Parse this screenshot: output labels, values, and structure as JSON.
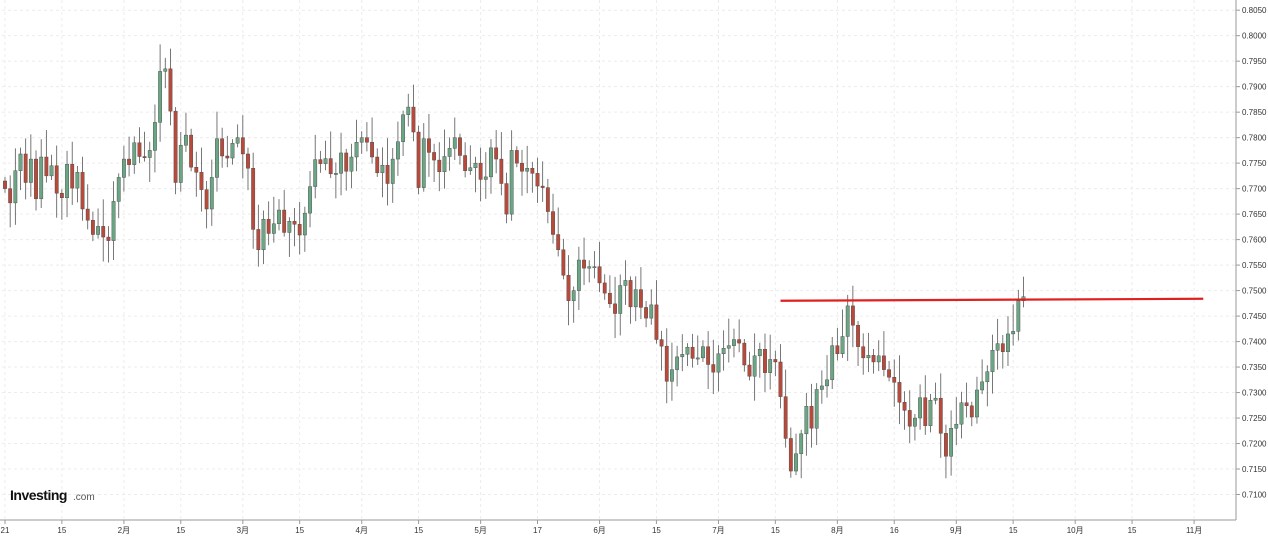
{
  "logo": {
    "main": "Investing",
    "suffix": ".com"
  },
  "colors": {
    "up": "#6aa584",
    "down": "#b84a3c",
    "trendline": "#e02020",
    "grid": "#ececec",
    "axis": "#9a9a9a"
  },
  "chart_data": {
    "type": "candlestick",
    "title": "",
    "xlabel": "",
    "ylabel": "",
    "ylim": [
      0.705,
      0.807
    ],
    "y_ticks": [
      "0.8050",
      "0.8000",
      "0.7950",
      "0.7900",
      "0.7850",
      "0.7800",
      "0.7750",
      "0.7700",
      "0.7650",
      "0.7600",
      "0.7550",
      "0.7500",
      "0.7450",
      "0.7400",
      "0.7350",
      "0.7300",
      "0.7250",
      "0.7200",
      "0.7150",
      "0.7100"
    ],
    "x_ticks": [
      {
        "label": "21",
        "index": 0
      },
      {
        "label": "15",
        "index": 11
      },
      {
        "label": "2月",
        "index": 23
      },
      {
        "label": "15",
        "index": 34
      },
      {
        "label": "3月",
        "index": 46
      },
      {
        "label": "15",
        "index": 57
      },
      {
        "label": "4月",
        "index": 69
      },
      {
        "label": "15",
        "index": 80
      },
      {
        "label": "5月",
        "index": 92
      },
      {
        "label": "17",
        "index": 103
      },
      {
        "label": "6月",
        "index": 115
      },
      {
        "label": "15",
        "index": 126
      },
      {
        "label": "7月",
        "index": 138
      },
      {
        "label": "15",
        "index": 149
      },
      {
        "label": "8月",
        "index": 161
      },
      {
        "label": "16",
        "index": 172
      },
      {
        "label": "9月",
        "index": 184
      },
      {
        "label": "15",
        "index": 195
      },
      {
        "label": "10月",
        "index": 207
      },
      {
        "label": "15",
        "index": 218
      },
      {
        "label": "11月",
        "index": 230
      }
    ],
    "grid": true,
    "closes": [
      0.77,
      0.7672,
      0.7735,
      0.7768,
      0.7712,
      0.7758,
      0.768,
      0.7762,
      0.7725,
      0.7745,
      0.7691,
      0.7682,
      0.7748,
      0.7701,
      0.7732,
      0.766,
      0.7638,
      0.761,
      0.7626,
      0.7605,
      0.7598,
      0.7675,
      0.7722,
      0.7758,
      0.7747,
      0.779,
      0.7763,
      0.7761,
      0.7775,
      0.783,
      0.793,
      0.7935,
      0.7852,
      0.7712,
      0.7785,
      0.7805,
      0.7742,
      0.7732,
      0.7698,
      0.766,
      0.7722,
      0.7798,
      0.7764,
      0.776,
      0.7789,
      0.78,
      0.7768,
      0.774,
      0.762,
      0.758,
      0.764,
      0.7612,
      0.7631,
      0.7658,
      0.7614,
      0.7636,
      0.763,
      0.7609,
      0.7652,
      0.7704,
      0.7757,
      0.7749,
      0.7759,
      0.7729,
      0.773,
      0.777,
      0.7734,
      0.7762,
      0.7791,
      0.78,
      0.7791,
      0.7762,
      0.7731,
      0.7746,
      0.771,
      0.7758,
      0.7792,
      0.7845,
      0.786,
      0.7811,
      0.7702,
      0.7798,
      0.7771,
      0.7756,
      0.7733,
      0.7763,
      0.7779,
      0.78,
      0.7765,
      0.7735,
      0.7741,
      0.775,
      0.7718,
      0.7723,
      0.778,
      0.7758,
      0.771,
      0.765,
      0.7775,
      0.775,
      0.7734,
      0.774,
      0.773,
      0.7705,
      0.7702,
      0.7655,
      0.761,
      0.758,
      0.753,
      0.748,
      0.75,
      0.756,
      0.7544,
      0.7547,
      0.7547,
      0.7515,
      0.7495,
      0.7474,
      0.7455,
      0.751,
      0.752,
      0.7468,
      0.7502,
      0.7467,
      0.7446,
      0.7472,
      0.7404,
      0.7391,
      0.7322,
      0.7345,
      0.737,
      0.7375,
      0.7389,
      0.7367,
      0.7368,
      0.739,
      0.7355,
      0.734,
      0.7376,
      0.7387,
      0.7392,
      0.7404,
      0.7397,
      0.7354,
      0.7332,
      0.7372,
      0.7385,
      0.7339,
      0.7365,
      0.736,
      0.7292,
      0.721,
      0.7146,
      0.718,
      0.7219,
      0.7273,
      0.723,
      0.7306,
      0.7313,
      0.7325,
      0.7392,
      0.7376,
      0.741,
      0.747,
      0.7432,
      0.739,
      0.7368,
      0.7373,
      0.736,
      0.7372,
      0.7345,
      0.733,
      0.732,
      0.7281,
      0.7265,
      0.7234,
      0.725,
      0.729,
      0.7235,
      0.7285,
      0.7289,
      0.722,
      0.7175,
      0.723,
      0.7238,
      0.728,
      0.7274,
      0.7252,
      0.7305,
      0.7321,
      0.7341,
      0.7383,
      0.7396,
      0.738,
      0.7415,
      0.742,
      0.748,
      0.7488
    ],
    "trendline": {
      "start_index": 150,
      "end_index": 231,
      "value": 0.7482
    }
  }
}
